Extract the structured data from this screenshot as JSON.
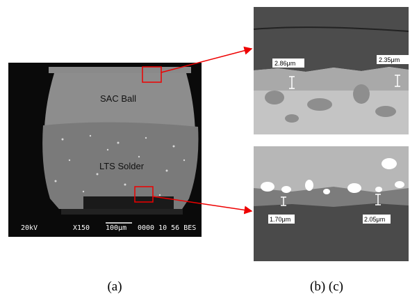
{
  "panel_a": {
    "labels": [
      "SAC Ball",
      "LTS Solder"
    ],
    "info_bar": [
      "20kV",
      "X150",
      "100μm",
      "0000 10 56 BES"
    ]
  },
  "panel_b": {
    "labels": [
      "2.86μm",
      "2.35μm"
    ]
  },
  "panel_c": {
    "labels": [
      "1.70μm",
      "2.05μm"
    ]
  },
  "captions": [
    "(a)",
    "(b) (c)"
  ]
}
